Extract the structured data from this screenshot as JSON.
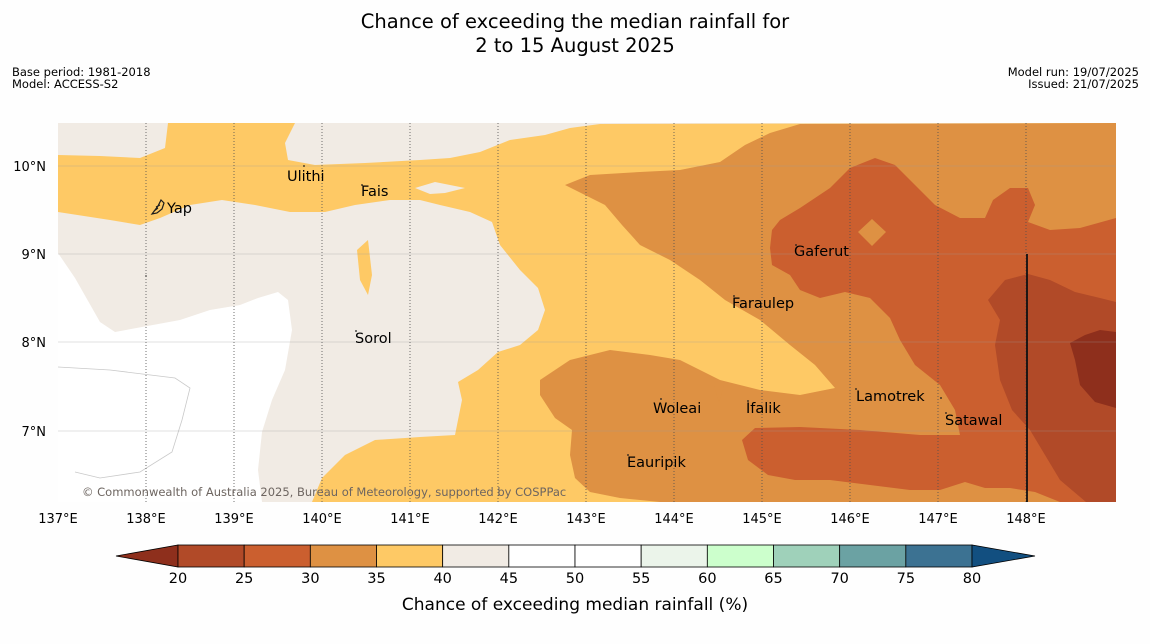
{
  "title": {
    "line1": "Chance of exceeding the median rainfall for",
    "line2": "2 to 15 August 2025"
  },
  "meta_left": [
    "Base period: 1981-2018",
    "Model: ACCESS-S2"
  ],
  "meta_right": [
    "Model run: 19/07/2025",
    "Issued: 21/07/2025"
  ],
  "copyright": "© Commonwealth of Australia 2025, Bureau of Meteorology, supported by COSPPac",
  "axes": {
    "lon_ticks": [
      "137°E",
      "138°E",
      "139°E",
      "140°E",
      "141°E",
      "142°E",
      "143°E",
      "144°E",
      "145°E",
      "146°E",
      "147°E",
      "148°E"
    ],
    "lat_ticks": [
      "10°N",
      "9°N",
      "8°N",
      "7°N"
    ]
  },
  "places": [
    "Yap",
    "Ulithi",
    "Fais",
    "Sorol",
    "Gaferut",
    "Faraulep",
    "Woleai",
    "Ifalik",
    "Lamotrek",
    "Satawal",
    "Eauripik"
  ],
  "colorbar": {
    "title": "Chance of exceeding median rainfall (%)",
    "ticks": [
      "20",
      "25",
      "30",
      "35",
      "40",
      "45",
      "50",
      "55",
      "60",
      "65",
      "70",
      "75",
      "80"
    ],
    "colors": [
      "#8e2f1c",
      "#b14a28",
      "#cb5f2f",
      "#de9143",
      "#fec965",
      "#f1ebe4",
      "#ffffff",
      "#ffffff",
      "#ebf4ea",
      "#ccffcc",
      "#9fd1ba",
      "#6ba2a3",
      "#3c7292",
      "#124f80"
    ]
  }
}
